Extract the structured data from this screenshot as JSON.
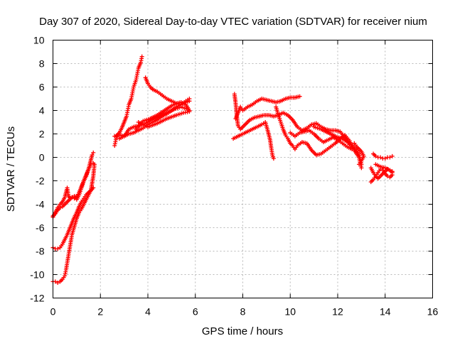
{
  "chart_data": {
    "type": "scatter",
    "title": "Day 307 of 2020, Sidereal Day-to-day VTEC variation (SDTVAR) for receiver nium",
    "xlabel": "GPS time / hours",
    "ylabel": "SDTVAR / TECUs",
    "xlim": [
      0,
      16
    ],
    "ylim": [
      -12,
      10
    ],
    "xticks": [
      0,
      2,
      4,
      6,
      8,
      10,
      12,
      14,
      16
    ],
    "yticks": [
      -12,
      -10,
      -8,
      -6,
      -4,
      -2,
      0,
      2,
      4,
      6,
      8,
      10
    ],
    "grid": true,
    "legend": "none",
    "marker": "plus",
    "color": "#ff0000",
    "series": [
      {
        "values": [
          [
            0.0,
            -5.1
          ],
          [
            0.1,
            -4.7
          ],
          [
            0.2,
            -4.3
          ],
          [
            0.3,
            -4.0
          ],
          [
            0.4,
            -3.8
          ],
          [
            0.5,
            -3.4
          ],
          [
            0.55,
            -3.0
          ],
          [
            0.6,
            -2.6
          ],
          [
            0.65,
            -3.3
          ],
          [
            0.75,
            -3.5
          ],
          [
            0.9,
            -3.3
          ],
          [
            1.0,
            -3.6
          ],
          [
            1.1,
            -3.2
          ],
          [
            1.2,
            -2.6
          ],
          [
            1.3,
            -2.0
          ],
          [
            1.4,
            -1.6
          ],
          [
            1.5,
            -1.0
          ],
          [
            1.55,
            -0.6
          ],
          [
            1.6,
            -0.2
          ],
          [
            1.65,
            0.2
          ],
          [
            1.7,
            0.4
          ]
        ]
      },
      {
        "values": [
          [
            0.0,
            -5.0
          ],
          [
            0.1,
            -4.8
          ],
          [
            0.2,
            -4.5
          ],
          [
            0.3,
            -4.3
          ],
          [
            0.4,
            -4.2
          ],
          [
            0.5,
            -4.0
          ],
          [
            0.6,
            -3.8
          ],
          [
            0.7,
            -3.6
          ],
          [
            0.8,
            -3.4
          ],
          [
            0.9,
            -3.5
          ],
          [
            1.0,
            -3.3
          ],
          [
            1.1,
            -3.0
          ],
          [
            1.2,
            -2.5
          ],
          [
            1.3,
            -2.0
          ],
          [
            1.4,
            -1.5
          ],
          [
            1.5,
            -1.0
          ],
          [
            1.6,
            -0.6
          ],
          [
            1.7,
            -0.5
          ]
        ]
      },
      {
        "values": [
          [
            0.0,
            -7.7
          ],
          [
            0.1,
            -7.8
          ],
          [
            0.2,
            -7.8
          ],
          [
            0.3,
            -7.7
          ],
          [
            0.4,
            -7.4
          ],
          [
            0.5,
            -7.0
          ],
          [
            0.6,
            -6.6
          ],
          [
            0.7,
            -6.1
          ],
          [
            0.8,
            -5.6
          ],
          [
            0.9,
            -5.1
          ],
          [
            1.0,
            -4.7
          ],
          [
            1.1,
            -4.2
          ],
          [
            1.2,
            -3.8
          ],
          [
            1.3,
            -3.5
          ],
          [
            1.4,
            -3.2
          ],
          [
            1.5,
            -3.0
          ],
          [
            1.6,
            -2.8
          ],
          [
            1.7,
            -2.6
          ]
        ]
      },
      {
        "values": [
          [
            0.0,
            -10.6
          ],
          [
            0.1,
            -10.6
          ],
          [
            0.2,
            -10.7
          ],
          [
            0.3,
            -10.6
          ],
          [
            0.4,
            -10.4
          ],
          [
            0.5,
            -10.1
          ],
          [
            0.55,
            -9.6
          ],
          [
            0.6,
            -9.0
          ],
          [
            0.65,
            -8.4
          ],
          [
            0.7,
            -7.8
          ],
          [
            0.75,
            -7.2
          ],
          [
            0.8,
            -6.6
          ],
          [
            0.9,
            -5.9
          ],
          [
            1.0,
            -5.2
          ],
          [
            1.1,
            -4.7
          ],
          [
            1.2,
            -4.4
          ],
          [
            1.3,
            -4.0
          ],
          [
            1.4,
            -3.6
          ],
          [
            1.5,
            -3.2
          ],
          [
            1.6,
            -2.8
          ],
          [
            1.7,
            -1.6
          ],
          [
            1.75,
            -0.6
          ]
        ]
      },
      {
        "values": [
          [
            2.6,
            1.0
          ],
          [
            2.65,
            1.5
          ],
          [
            2.7,
            1.9
          ],
          [
            2.8,
            2.1
          ],
          [
            2.9,
            2.5
          ],
          [
            3.0,
            3.0
          ],
          [
            3.1,
            3.5
          ],
          [
            3.15,
            4.0
          ],
          [
            3.2,
            4.5
          ],
          [
            3.3,
            5.0
          ],
          [
            3.35,
            5.5
          ],
          [
            3.4,
            6.0
          ],
          [
            3.5,
            6.6
          ],
          [
            3.55,
            7.1
          ],
          [
            3.6,
            7.6
          ],
          [
            3.7,
            8.1
          ],
          [
            3.75,
            8.6
          ]
        ]
      },
      {
        "values": [
          [
            2.6,
            1.8
          ],
          [
            2.8,
            1.9
          ],
          [
            3.0,
            1.8
          ],
          [
            3.2,
            2.0
          ],
          [
            3.4,
            2.1
          ],
          [
            3.6,
            2.3
          ],
          [
            3.8,
            2.5
          ],
          [
            4.0,
            2.8
          ],
          [
            4.2,
            3.0
          ],
          [
            4.4,
            3.2
          ],
          [
            4.6,
            3.5
          ],
          [
            4.8,
            3.7
          ],
          [
            5.0,
            4.0
          ],
          [
            5.2,
            4.3
          ],
          [
            5.4,
            4.5
          ],
          [
            5.6,
            4.7
          ],
          [
            5.75,
            4.8
          ]
        ]
      },
      {
        "values": [
          [
            2.8,
            1.6
          ],
          [
            3.0,
            1.8
          ],
          [
            3.2,
            2.4
          ],
          [
            3.4,
            2.6
          ],
          [
            3.6,
            2.7
          ],
          [
            3.8,
            2.8
          ],
          [
            4.0,
            3.0
          ],
          [
            4.2,
            3.2
          ],
          [
            4.5,
            3.5
          ],
          [
            4.8,
            3.8
          ],
          [
            5.1,
            4.1
          ],
          [
            5.4,
            4.3
          ],
          [
            5.7,
            4.1
          ]
        ]
      },
      {
        "values": [
          [
            3.5,
            2.4
          ],
          [
            3.8,
            3.1
          ],
          [
            4.1,
            3.3
          ],
          [
            4.4,
            3.6
          ],
          [
            4.7,
            4.0
          ],
          [
            5.0,
            4.4
          ],
          [
            5.2,
            4.6
          ],
          [
            5.4,
            4.7
          ],
          [
            5.6,
            4.5
          ],
          [
            5.75,
            4.0
          ]
        ]
      },
      {
        "values": [
          [
            3.9,
            6.8
          ],
          [
            4.0,
            6.3
          ],
          [
            4.1,
            6.0
          ],
          [
            4.2,
            5.8
          ],
          [
            4.4,
            5.6
          ],
          [
            4.6,
            5.3
          ],
          [
            4.8,
            5.0
          ],
          [
            5.0,
            4.8
          ],
          [
            5.2,
            4.6
          ],
          [
            5.4,
            4.5
          ],
          [
            5.6,
            4.8
          ],
          [
            5.75,
            5.0
          ]
        ]
      },
      {
        "values": [
          [
            3.6,
            3.0
          ],
          [
            4.0,
            2.6
          ],
          [
            4.4,
            2.9
          ],
          [
            4.8,
            3.3
          ],
          [
            5.2,
            3.6
          ],
          [
            5.5,
            3.8
          ],
          [
            5.75,
            3.9
          ]
        ]
      },
      {
        "values": [
          [
            7.65,
            5.4
          ],
          [
            7.7,
            4.6
          ],
          [
            7.75,
            3.5
          ],
          [
            7.8,
            2.7
          ],
          [
            7.9,
            2.4
          ],
          [
            8.0,
            2.6
          ],
          [
            8.1,
            2.8
          ],
          [
            8.3,
            3.2
          ],
          [
            8.5,
            3.4
          ],
          [
            8.7,
            3.5
          ],
          [
            8.9,
            3.6
          ],
          [
            9.1,
            3.6
          ],
          [
            9.3,
            3.5
          ],
          [
            9.5,
            3.6
          ],
          [
            9.7,
            3.8
          ],
          [
            9.9,
            3.6
          ],
          [
            10.1,
            3.2
          ],
          [
            10.3,
            2.6
          ],
          [
            10.5,
            2.3
          ],
          [
            10.7,
            2.5
          ],
          [
            10.9,
            2.8
          ],
          [
            11.1,
            2.9
          ],
          [
            11.3,
            2.6
          ],
          [
            11.5,
            2.4
          ],
          [
            11.7,
            2.3
          ],
          [
            11.9,
            2.3
          ],
          [
            12.1,
            2.2
          ],
          [
            12.3,
            1.7
          ],
          [
            12.5,
            1.1
          ],
          [
            12.7,
            0.8
          ],
          [
            12.9,
            0.3
          ],
          [
            13.0,
            -0.6
          ]
        ]
      },
      {
        "values": [
          [
            7.7,
            3.3
          ],
          [
            7.8,
            3.8
          ],
          [
            7.9,
            4.3
          ],
          [
            8.0,
            4.0
          ],
          [
            8.2,
            4.3
          ],
          [
            8.4,
            4.5
          ],
          [
            8.6,
            4.8
          ],
          [
            8.8,
            5.0
          ],
          [
            9.0,
            4.9
          ],
          [
            9.2,
            4.8
          ],
          [
            9.4,
            4.7
          ],
          [
            9.6,
            4.8
          ],
          [
            9.8,
            5.0
          ],
          [
            10.0,
            5.1
          ],
          [
            10.2,
            5.1
          ],
          [
            10.4,
            5.2
          ]
        ]
      },
      {
        "values": [
          [
            7.6,
            1.6
          ],
          [
            7.8,
            1.8
          ],
          [
            8.0,
            2.0
          ],
          [
            8.2,
            2.2
          ],
          [
            8.4,
            2.4
          ],
          [
            8.6,
            2.6
          ],
          [
            8.8,
            2.8
          ],
          [
            8.95,
            3.0
          ],
          [
            9.05,
            2.3
          ],
          [
            9.15,
            1.5
          ],
          [
            9.2,
            0.8
          ],
          [
            9.25,
            0.2
          ],
          [
            9.3,
            -0.1
          ]
        ]
      },
      {
        "values": [
          [
            9.4,
            4.3
          ],
          [
            9.5,
            3.6
          ],
          [
            9.6,
            3.0
          ],
          [
            9.7,
            2.4
          ],
          [
            9.8,
            1.9
          ],
          [
            9.9,
            1.6
          ],
          [
            10.0,
            1.2
          ],
          [
            10.1,
            1.0
          ],
          [
            10.2,
            0.7
          ],
          [
            10.3,
            1.0
          ],
          [
            10.5,
            1.3
          ],
          [
            10.7,
            1.2
          ],
          [
            10.9,
            0.6
          ],
          [
            11.1,
            0.2
          ],
          [
            11.3,
            0.3
          ],
          [
            11.5,
            0.6
          ],
          [
            11.7,
            0.9
          ],
          [
            11.9,
            1.2
          ],
          [
            12.1,
            1.6
          ],
          [
            12.3,
            1.9
          ],
          [
            12.5,
            1.4
          ],
          [
            12.7,
            0.6
          ],
          [
            12.9,
            0.0
          ],
          [
            13.0,
            -0.9
          ]
        ]
      },
      {
        "values": [
          [
            10.0,
            2.1
          ],
          [
            10.2,
            1.8
          ],
          [
            10.4,
            2.1
          ],
          [
            10.6,
            2.2
          ],
          [
            10.8,
            2.3
          ],
          [
            11.0,
            2.0
          ],
          [
            11.2,
            1.6
          ],
          [
            11.4,
            1.3
          ],
          [
            11.6,
            1.5
          ],
          [
            11.8,
            1.7
          ],
          [
            12.0,
            1.5
          ],
          [
            12.2,
            1.2
          ],
          [
            12.4,
            0.9
          ],
          [
            12.6,
            0.7
          ]
        ]
      },
      {
        "values": [
          [
            11.0,
            2.6
          ],
          [
            11.3,
            2.4
          ],
          [
            11.6,
            2.1
          ],
          [
            11.9,
            1.8
          ],
          [
            12.2,
            1.6
          ],
          [
            12.5,
            1.2
          ]
        ]
      },
      {
        "values": [
          [
            12.7,
            1.2
          ],
          [
            12.8,
            0.9
          ],
          [
            12.9,
            0.7
          ],
          [
            13.0,
            0.5
          ],
          [
            13.1,
            0.1
          ],
          [
            13.0,
            -0.3
          ],
          [
            12.9,
            -0.6
          ]
        ]
      },
      {
        "values": [
          [
            13.5,
            0.3
          ],
          [
            13.6,
            0.1
          ],
          [
            13.7,
            0.0
          ],
          [
            13.8,
            0.0
          ],
          [
            13.9,
            -0.1
          ],
          [
            14.0,
            -0.1
          ],
          [
            14.1,
            0.0
          ],
          [
            14.2,
            0.0
          ],
          [
            14.3,
            0.1
          ]
        ]
      },
      {
        "values": [
          [
            13.4,
            -0.9
          ],
          [
            13.5,
            -1.3
          ],
          [
            13.6,
            -1.6
          ],
          [
            13.7,
            -1.8
          ],
          [
            13.8,
            -1.6
          ],
          [
            13.9,
            -1.4
          ],
          [
            14.0,
            -1.2
          ],
          [
            14.1,
            -1.0
          ],
          [
            14.2,
            -1.1
          ],
          [
            14.3,
            -1.3
          ]
        ]
      },
      {
        "values": [
          [
            13.4,
            -2.1
          ],
          [
            13.5,
            -1.9
          ],
          [
            13.6,
            -1.6
          ],
          [
            13.7,
            -1.3
          ],
          [
            13.8,
            -1.0
          ],
          [
            13.9,
            -1.1
          ],
          [
            14.0,
            -1.4
          ],
          [
            14.1,
            -1.6
          ],
          [
            14.2,
            -1.7
          ],
          [
            14.3,
            -1.5
          ]
        ]
      },
      {
        "values": [
          [
            13.6,
            -0.6
          ],
          [
            13.8,
            -0.8
          ],
          [
            14.0,
            -0.9
          ],
          [
            14.2,
            -1.1
          ],
          [
            14.3,
            -1.2
          ]
        ]
      }
    ]
  }
}
